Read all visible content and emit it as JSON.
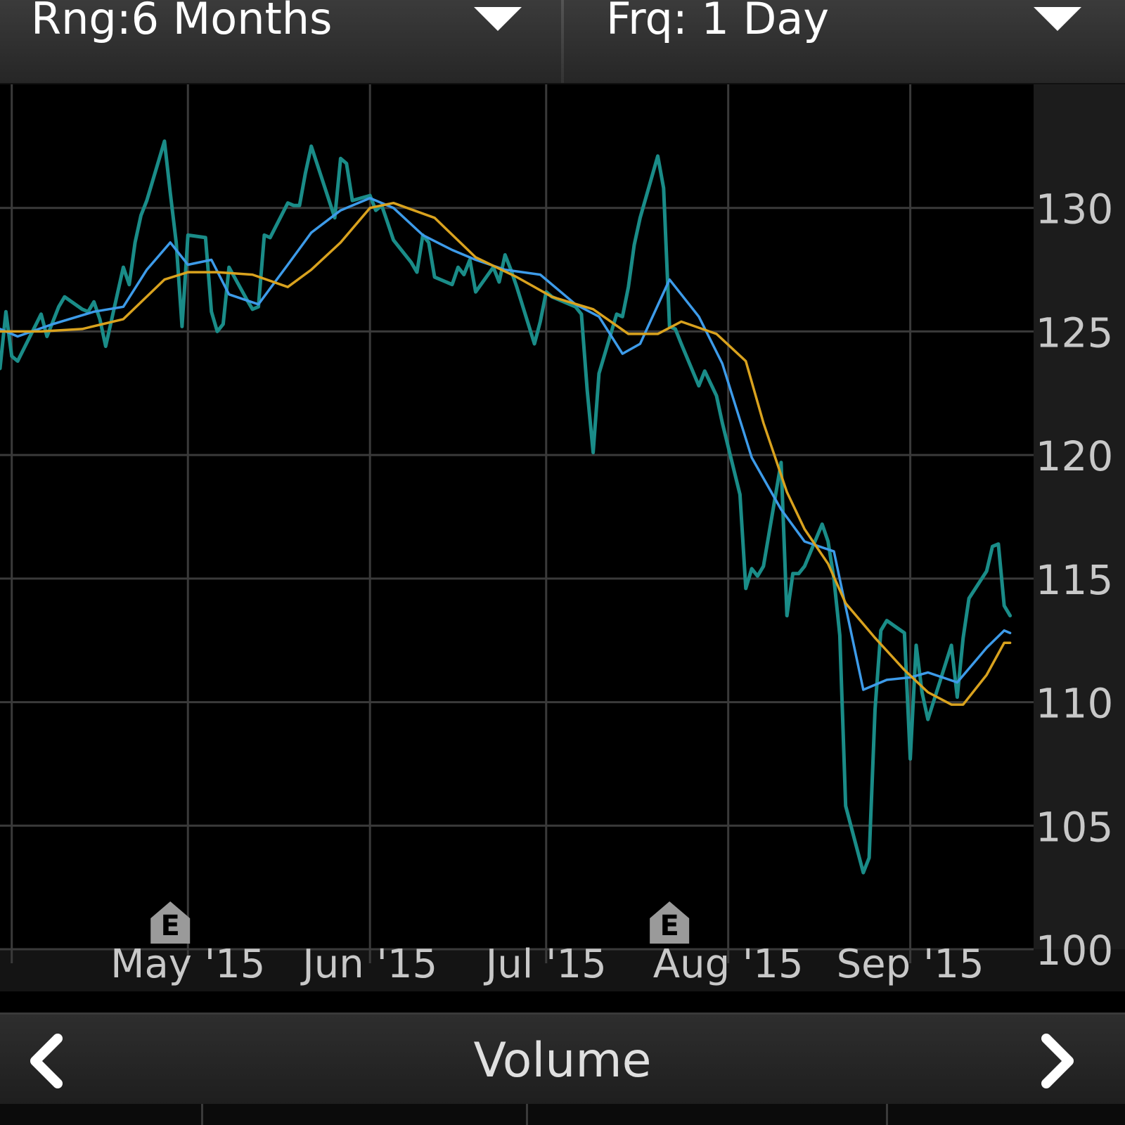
{
  "toolbar": {
    "range_label": "Rng:6 Months",
    "frequency_label": "Frq: 1 Day"
  },
  "bottom": {
    "title": "Volume",
    "prev_icon": "chevron-left-icon",
    "next_icon": "chevron-right-icon"
  },
  "colors": {
    "price": "#1a8c88",
    "ma_short": "#3d9be9",
    "ma_long": "#d9a21e",
    "grid": "#3a3a3a",
    "axis_text": "#c8c8c8",
    "axis_bg": "#1c1c1c"
  },
  "chart_data": {
    "type": "line",
    "ylim": [
      100,
      135
    ],
    "y_ticks": [
      100,
      105,
      110,
      115,
      120,
      125,
      130
    ],
    "x_ticks": [
      {
        "label": "May '15",
        "date": "2015-05-01"
      },
      {
        "label": "Jun '15",
        "date": "2015-06-01"
      },
      {
        "label": "Jul '15",
        "date": "2015-07-01"
      },
      {
        "label": "Aug '15",
        "date": "2015-08-01"
      },
      {
        "label": "Sep '15",
        "date": "2015-09-01"
      }
    ],
    "earnings_markers": [
      {
        "label": "E",
        "date": "2015-04-28"
      },
      {
        "label": "E",
        "date": "2015-07-22"
      }
    ],
    "series": [
      {
        "key": "price",
        "points": [
          [
            "2015-03-30",
            123.5
          ],
          [
            "2015-03-31",
            125.8
          ],
          [
            "2015-04-01",
            124.0
          ],
          [
            "2015-04-02",
            123.8
          ],
          [
            "2015-04-06",
            125.7
          ],
          [
            "2015-04-07",
            124.8
          ],
          [
            "2015-04-08",
            125.4
          ],
          [
            "2015-04-09",
            126.0
          ],
          [
            "2015-04-10",
            126.4
          ],
          [
            "2015-04-13",
            125.9
          ],
          [
            "2015-04-14",
            125.8
          ],
          [
            "2015-04-15",
            126.2
          ],
          [
            "2015-04-16",
            125.5
          ],
          [
            "2015-04-17",
            124.4
          ],
          [
            "2015-04-20",
            127.6
          ],
          [
            "2015-04-21",
            126.9
          ],
          [
            "2015-04-22",
            128.6
          ],
          [
            "2015-04-23",
            129.7
          ],
          [
            "2015-04-24",
            130.3
          ],
          [
            "2015-04-27",
            132.7
          ],
          [
            "2015-04-28",
            130.6
          ],
          [
            "2015-04-29",
            128.6
          ],
          [
            "2015-04-30",
            125.2
          ],
          [
            "2015-05-01",
            128.9
          ],
          [
            "2015-05-04",
            128.8
          ],
          [
            "2015-05-05",
            125.8
          ],
          [
            "2015-05-06",
            125.0
          ],
          [
            "2015-05-07",
            125.3
          ],
          [
            "2015-05-08",
            127.6
          ],
          [
            "2015-05-11",
            126.3
          ],
          [
            "2015-05-12",
            125.9
          ],
          [
            "2015-05-13",
            126.0
          ],
          [
            "2015-05-14",
            128.9
          ],
          [
            "2015-05-15",
            128.8
          ],
          [
            "2015-05-18",
            130.2
          ],
          [
            "2015-05-19",
            130.1
          ],
          [
            "2015-05-20",
            130.1
          ],
          [
            "2015-05-21",
            131.4
          ],
          [
            "2015-05-22",
            132.5
          ],
          [
            "2015-05-26",
            129.6
          ],
          [
            "2015-05-27",
            132.0
          ],
          [
            "2015-05-28",
            131.8
          ],
          [
            "2015-05-29",
            130.3
          ],
          [
            "2015-06-01",
            130.5
          ],
          [
            "2015-06-02",
            129.9
          ],
          [
            "2015-06-03",
            130.1
          ],
          [
            "2015-06-04",
            129.4
          ],
          [
            "2015-06-05",
            128.7
          ],
          [
            "2015-06-08",
            127.8
          ],
          [
            "2015-06-09",
            127.4
          ],
          [
            "2015-06-10",
            128.9
          ],
          [
            "2015-06-11",
            128.6
          ],
          [
            "2015-06-12",
            127.2
          ],
          [
            "2015-06-15",
            126.9
          ],
          [
            "2015-06-16",
            127.6
          ],
          [
            "2015-06-17",
            127.3
          ],
          [
            "2015-06-18",
            127.9
          ],
          [
            "2015-06-19",
            126.6
          ],
          [
            "2015-06-22",
            127.6
          ],
          [
            "2015-06-23",
            127.0
          ],
          [
            "2015-06-24",
            128.1
          ],
          [
            "2015-06-25",
            127.5
          ],
          [
            "2015-06-26",
            126.8
          ],
          [
            "2015-06-29",
            124.5
          ],
          [
            "2015-06-30",
            125.4
          ],
          [
            "2015-07-01",
            126.6
          ],
          [
            "2015-07-02",
            126.4
          ],
          [
            "2015-07-06",
            126.0
          ],
          [
            "2015-07-07",
            125.7
          ],
          [
            "2015-07-08",
            122.6
          ],
          [
            "2015-07-09",
            120.1
          ],
          [
            "2015-07-10",
            123.3
          ],
          [
            "2015-07-13",
            125.7
          ],
          [
            "2015-07-14",
            125.6
          ],
          [
            "2015-07-15",
            126.8
          ],
          [
            "2015-07-16",
            128.5
          ],
          [
            "2015-07-17",
            129.6
          ],
          [
            "2015-07-20",
            132.1
          ],
          [
            "2015-07-21",
            130.8
          ],
          [
            "2015-07-22",
            125.2
          ],
          [
            "2015-07-23",
            125.1
          ],
          [
            "2015-07-24",
            124.5
          ],
          [
            "2015-07-27",
            122.8
          ],
          [
            "2015-07-28",
            123.4
          ],
          [
            "2015-07-29",
            122.9
          ],
          [
            "2015-07-30",
            122.4
          ],
          [
            "2015-07-31",
            121.3
          ],
          [
            "2015-08-03",
            118.4
          ],
          [
            "2015-08-04",
            114.6
          ],
          [
            "2015-08-05",
            115.4
          ],
          [
            "2015-08-06",
            115.1
          ],
          [
            "2015-08-07",
            115.5
          ],
          [
            "2015-08-10",
            119.7
          ],
          [
            "2015-08-11",
            113.5
          ],
          [
            "2015-08-12",
            115.2
          ],
          [
            "2015-08-13",
            115.2
          ],
          [
            "2015-08-14",
            115.5
          ],
          [
            "2015-08-17",
            117.2
          ],
          [
            "2015-08-18",
            116.5
          ],
          [
            "2015-08-19",
            115.0
          ],
          [
            "2015-08-20",
            112.7
          ],
          [
            "2015-08-21",
            105.8
          ],
          [
            "2015-08-24",
            103.1
          ],
          [
            "2015-08-25",
            103.7
          ],
          [
            "2015-08-26",
            109.7
          ],
          [
            "2015-08-27",
            112.9
          ],
          [
            "2015-08-28",
            113.3
          ],
          [
            "2015-08-31",
            112.8
          ],
          [
            "2015-09-01",
            107.7
          ],
          [
            "2015-09-02",
            112.3
          ],
          [
            "2015-09-03",
            110.4
          ],
          [
            "2015-09-04",
            109.3
          ],
          [
            "2015-09-08",
            112.3
          ],
          [
            "2015-09-09",
            110.2
          ],
          [
            "2015-09-10",
            112.6
          ],
          [
            "2015-09-11",
            114.2
          ],
          [
            "2015-09-14",
            115.3
          ],
          [
            "2015-09-15",
            116.3
          ],
          [
            "2015-09-16",
            116.4
          ],
          [
            "2015-09-17",
            113.9
          ],
          [
            "2015-09-18",
            113.5
          ]
        ]
      },
      {
        "key": "ma_short",
        "points": [
          [
            "2015-03-30",
            125.1
          ],
          [
            "2015-04-02",
            124.8
          ],
          [
            "2015-04-08",
            125.3
          ],
          [
            "2015-04-15",
            125.8
          ],
          [
            "2015-04-20",
            126.0
          ],
          [
            "2015-04-24",
            127.5
          ],
          [
            "2015-04-28",
            128.6
          ],
          [
            "2015-05-01",
            127.7
          ],
          [
            "2015-05-05",
            127.9
          ],
          [
            "2015-05-08",
            126.5
          ],
          [
            "2015-05-13",
            126.1
          ],
          [
            "2015-05-18",
            127.7
          ],
          [
            "2015-05-22",
            129.0
          ],
          [
            "2015-05-27",
            129.9
          ],
          [
            "2015-06-01",
            130.4
          ],
          [
            "2015-06-05",
            130.0
          ],
          [
            "2015-06-10",
            128.9
          ],
          [
            "2015-06-15",
            128.3
          ],
          [
            "2015-06-19",
            127.9
          ],
          [
            "2015-06-24",
            127.5
          ],
          [
            "2015-06-30",
            127.3
          ],
          [
            "2015-07-06",
            126.1
          ],
          [
            "2015-07-10",
            125.6
          ],
          [
            "2015-07-14",
            124.1
          ],
          [
            "2015-07-17",
            124.5
          ],
          [
            "2015-07-22",
            127.1
          ],
          [
            "2015-07-27",
            125.6
          ],
          [
            "2015-07-31",
            123.7
          ],
          [
            "2015-08-05",
            119.9
          ],
          [
            "2015-08-10",
            117.8
          ],
          [
            "2015-08-14",
            116.5
          ],
          [
            "2015-08-19",
            116.1
          ],
          [
            "2015-08-24",
            110.5
          ],
          [
            "2015-08-28",
            110.9
          ],
          [
            "2015-09-01",
            111.0
          ],
          [
            "2015-09-04",
            111.2
          ],
          [
            "2015-09-09",
            110.8
          ],
          [
            "2015-09-14",
            112.2
          ],
          [
            "2015-09-17",
            112.9
          ],
          [
            "2015-09-18",
            112.8
          ]
        ]
      },
      {
        "key": "ma_long",
        "points": [
          [
            "2015-03-30",
            125.0
          ],
          [
            "2015-04-06",
            125.0
          ],
          [
            "2015-04-13",
            125.1
          ],
          [
            "2015-04-20",
            125.5
          ],
          [
            "2015-04-27",
            127.1
          ],
          [
            "2015-05-01",
            127.4
          ],
          [
            "2015-05-06",
            127.4
          ],
          [
            "2015-05-12",
            127.3
          ],
          [
            "2015-05-18",
            126.8
          ],
          [
            "2015-05-22",
            127.5
          ],
          [
            "2015-05-27",
            128.6
          ],
          [
            "2015-06-01",
            130.0
          ],
          [
            "2015-06-05",
            130.2
          ],
          [
            "2015-06-12",
            129.6
          ],
          [
            "2015-06-19",
            128.0
          ],
          [
            "2015-06-26",
            127.2
          ],
          [
            "2015-07-02",
            126.4
          ],
          [
            "2015-07-09",
            125.9
          ],
          [
            "2015-07-15",
            124.9
          ],
          [
            "2015-07-20",
            124.9
          ],
          [
            "2015-07-24",
            125.4
          ],
          [
            "2015-07-30",
            124.9
          ],
          [
            "2015-08-04",
            123.8
          ],
          [
            "2015-08-07",
            121.3
          ],
          [
            "2015-08-11",
            118.5
          ],
          [
            "2015-08-14",
            117.0
          ],
          [
            "2015-08-18",
            115.6
          ],
          [
            "2015-08-21",
            114.0
          ],
          [
            "2015-08-26",
            112.6
          ],
          [
            "2015-08-31",
            111.3
          ],
          [
            "2015-09-04",
            110.4
          ],
          [
            "2015-09-08",
            109.9
          ],
          [
            "2015-09-10",
            109.9
          ],
          [
            "2015-09-14",
            111.1
          ],
          [
            "2015-09-17",
            112.4
          ],
          [
            "2015-09-18",
            112.4
          ]
        ]
      }
    ]
  }
}
